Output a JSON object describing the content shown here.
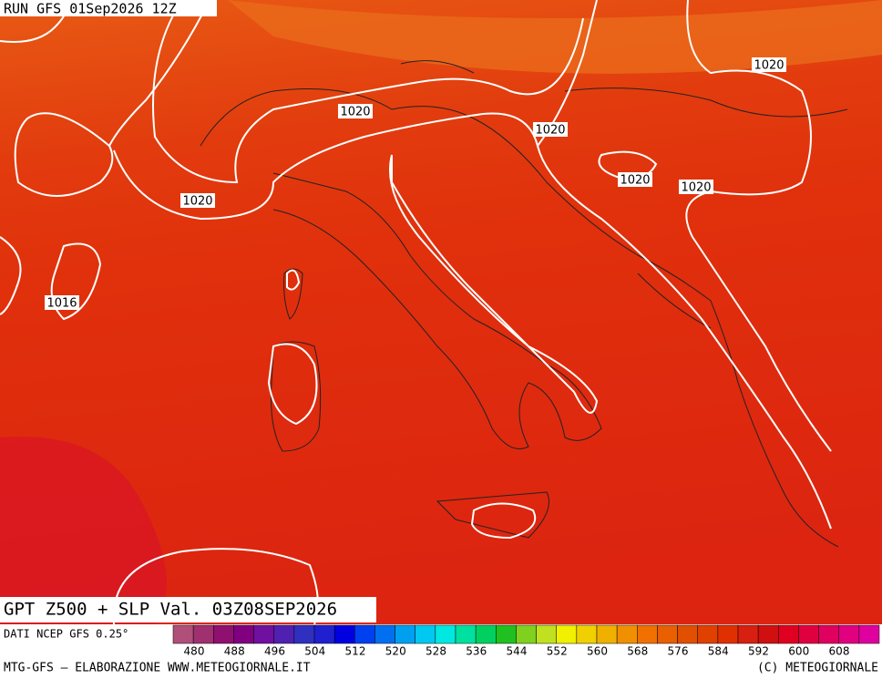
{
  "header": {
    "run": "RUN GFS 01Sep2026 12Z"
  },
  "isobar_labels": [
    "1020",
    "1020",
    "1020",
    "1020",
    "1020",
    "1020",
    "1016"
  ],
  "map_title": "GPT Z500 + SLP Val. 03Z08SEP2026",
  "source": "DATI NCEP GFS 0.25°",
  "colorbar": {
    "labels": [
      "480",
      "488",
      "496",
      "504",
      "512",
      "520",
      "528",
      "536",
      "544",
      "552",
      "560",
      "568",
      "576",
      "584",
      "592",
      "600",
      "608"
    ],
    "colors": [
      "#b0507a",
      "#a03070",
      "#901070",
      "#800080",
      "#7010a0",
      "#5020b0",
      "#3030c0",
      "#2020d0",
      "#0000e0",
      "#0040f0",
      "#0070f0",
      "#00a0f0",
      "#00c8f0",
      "#00e8e0",
      "#00e0a0",
      "#00d060",
      "#20c020",
      "#80d020",
      "#c0e020",
      "#f0f000",
      "#f0d000",
      "#f0b000",
      "#f09000",
      "#f07000",
      "#e86000",
      "#e05000",
      "#e04000",
      "#e03000",
      "#d82010",
      "#d01010",
      "#e00020",
      "#e00040",
      "#e00060",
      "#e00080",
      "#e000a0"
    ]
  },
  "footer": {
    "left": "MTG-GFS — ELABORAZIONE WWW.METEOGIORNALE.IT",
    "right": "(C) METEOGIORNALE"
  }
}
